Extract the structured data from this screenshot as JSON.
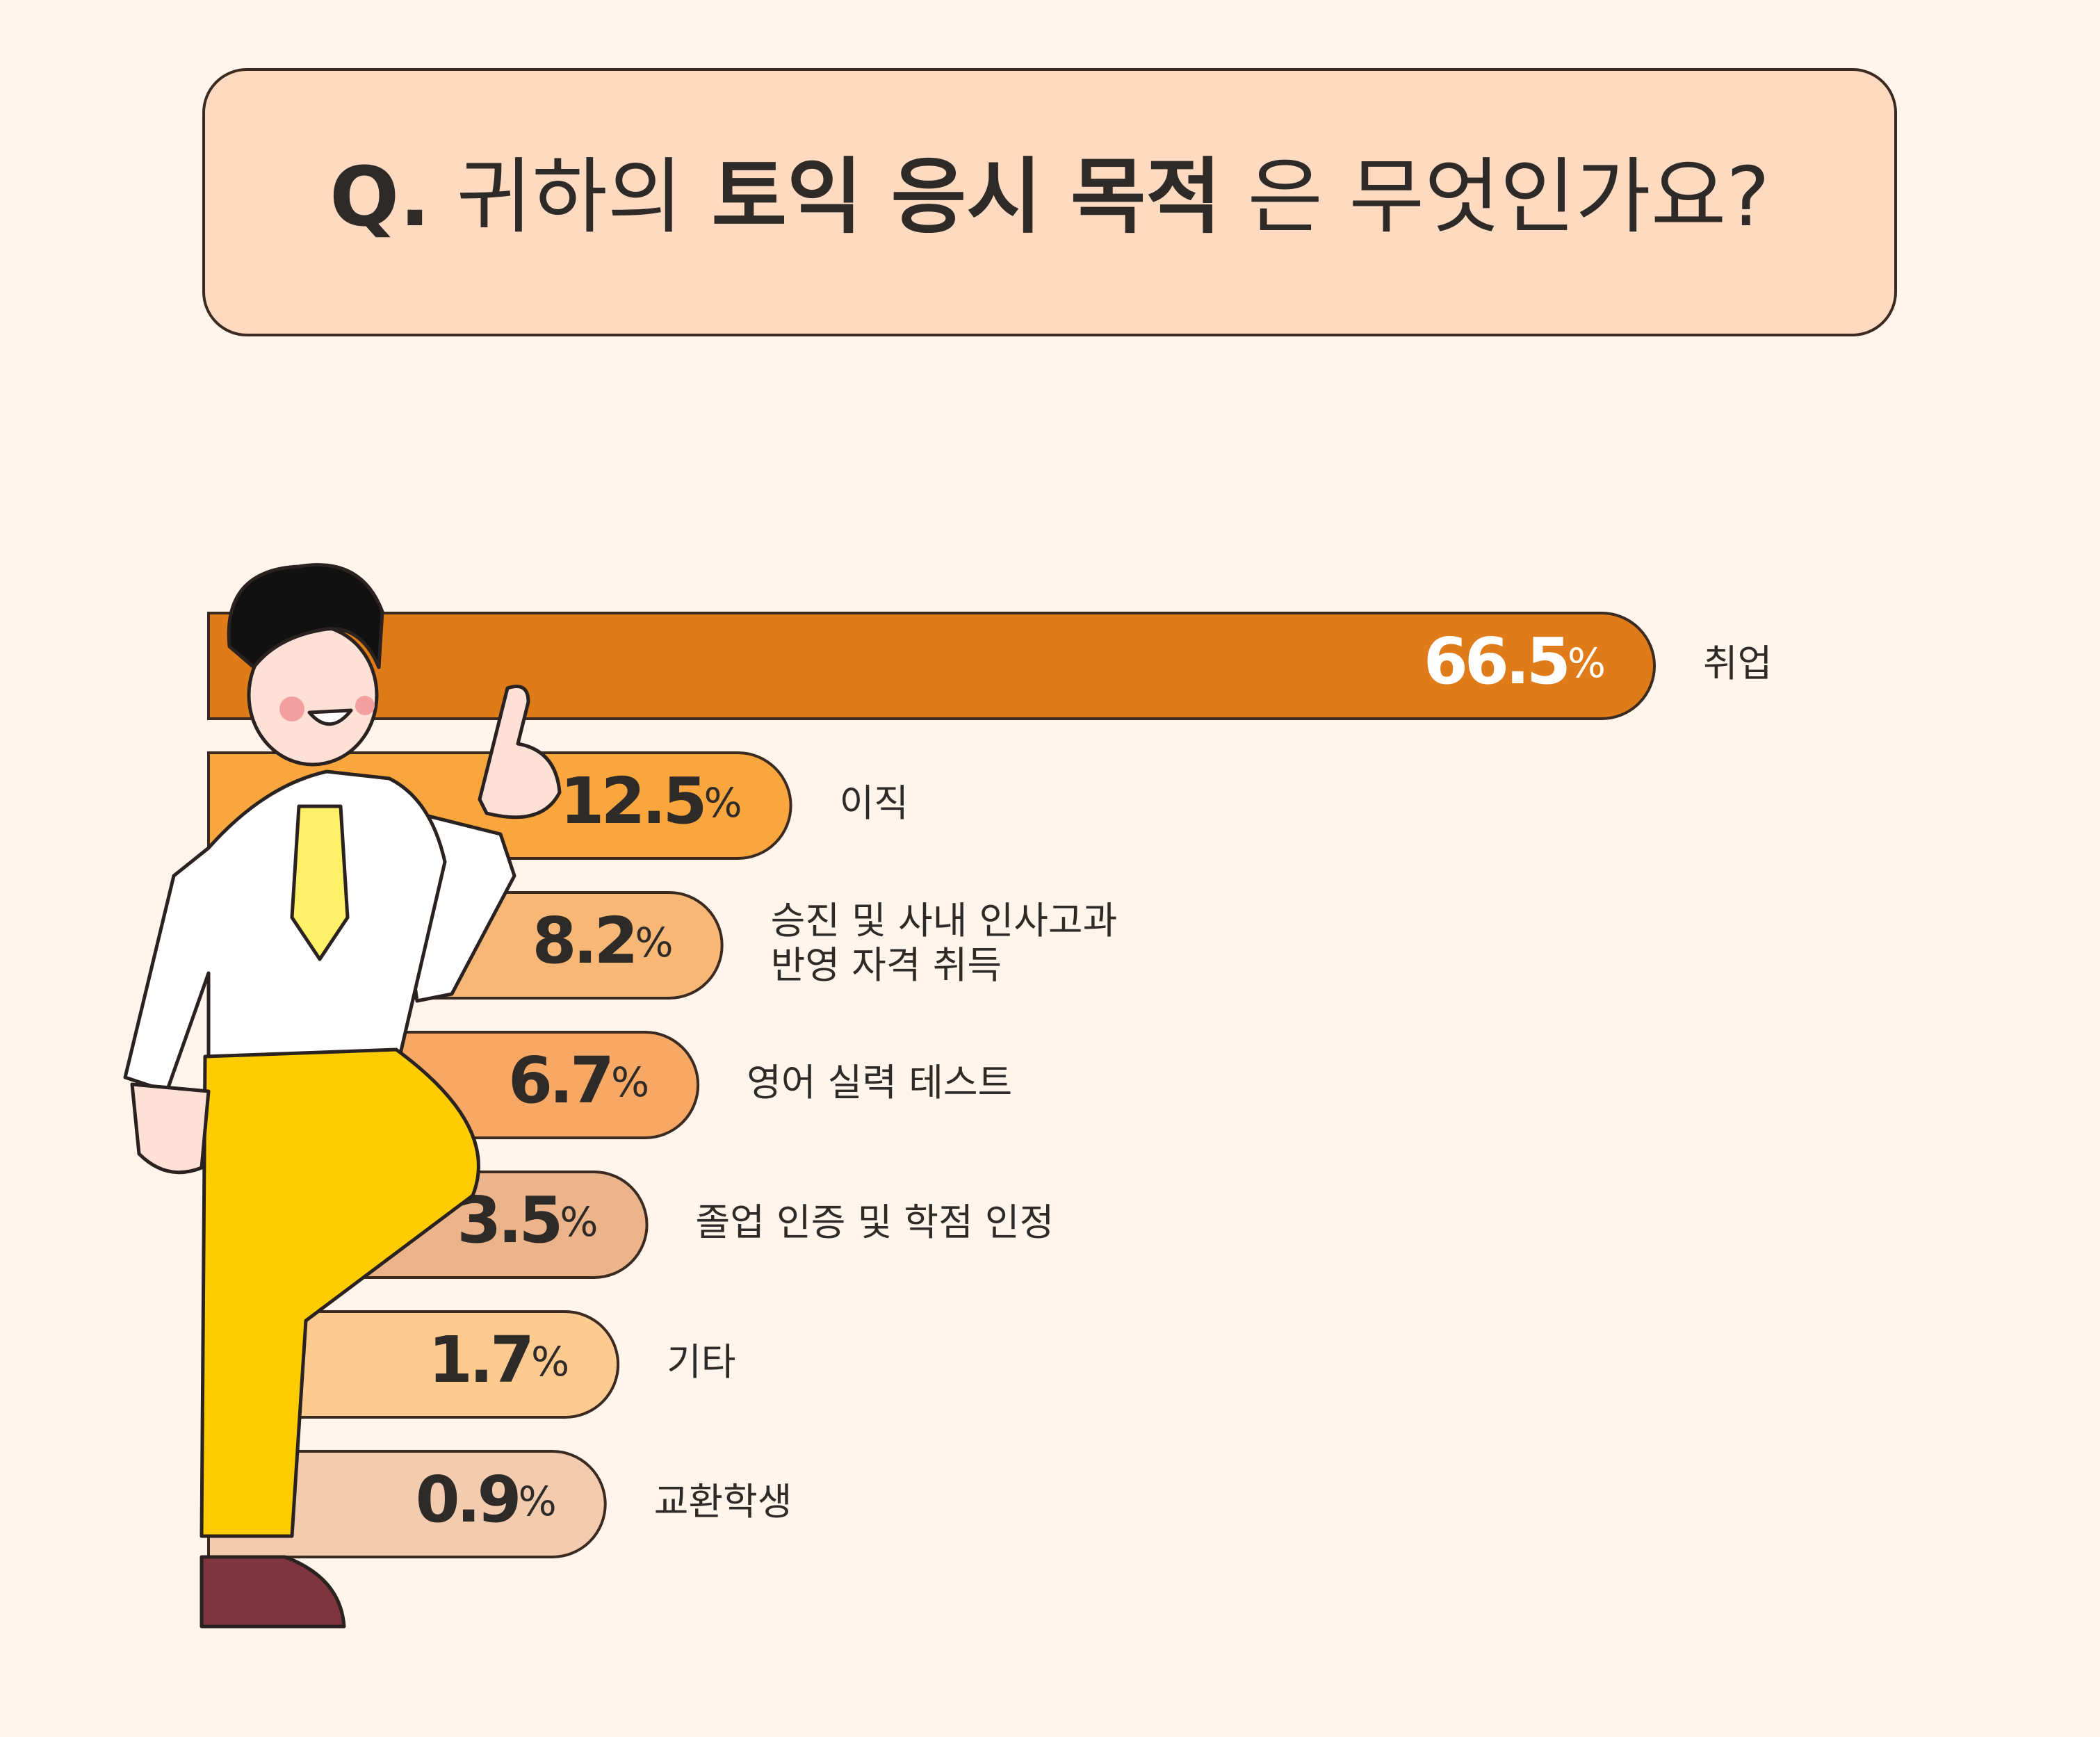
{
  "chart_data": {
    "type": "bar",
    "orientation": "horizontal",
    "title": [
      {
        "text": "Q.",
        "bold": true
      },
      {
        "text": "귀하의",
        "bold": false
      },
      {
        "text": "토익 응시 목적",
        "bold": true
      },
      {
        "text": "은 무엇인가요?",
        "bold": false
      }
    ],
    "categories": [
      "취업",
      "이직",
      "승진 및 사내 인사고과\n반영 자격 취득",
      "영어 실력 테스트",
      "졸업 인증 및 학점 인정",
      "기타",
      "교환학생"
    ],
    "values": [
      66.5,
      12.5,
      8.2,
      6.7,
      3.5,
      1.7,
      0.9
    ],
    "value_labels": [
      "66.5%",
      "12.5%",
      "8.2%",
      "6.7%",
      "3.5%",
      "1.7%",
      "0.9%"
    ],
    "colors": [
      "#e07b1a",
      "#f9a63f",
      "#f7b877",
      "#f6a864",
      "#ebb48a",
      "#fdcb90",
      "#f3ccb0"
    ]
  }
}
